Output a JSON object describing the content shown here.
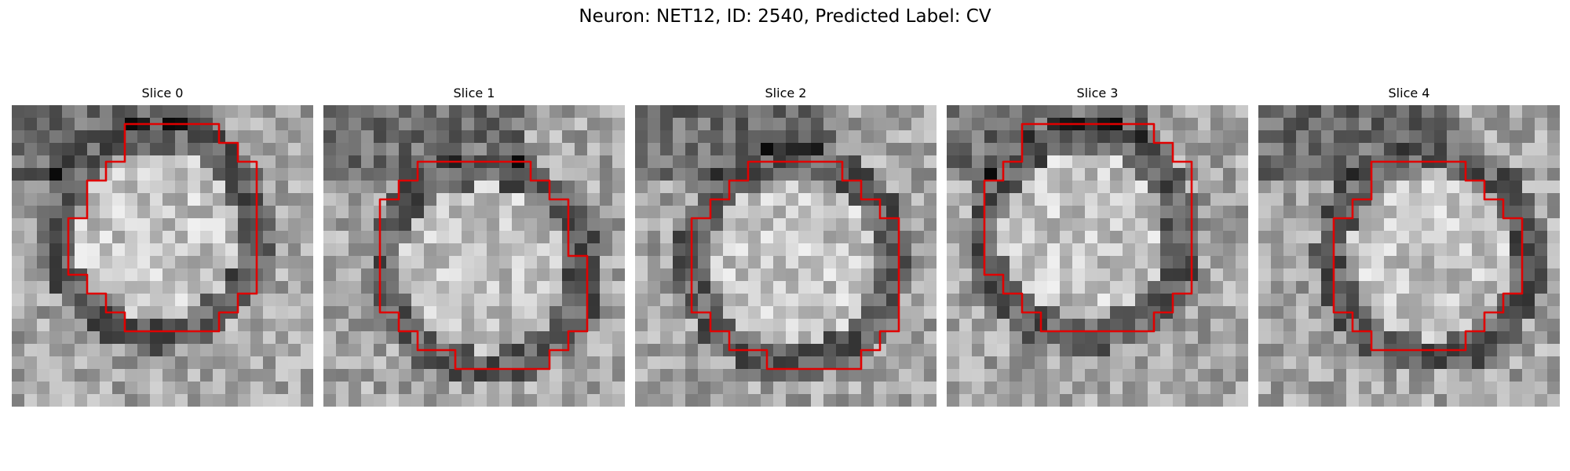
{
  "figure": {
    "title": "Neuron: NET12, ID: 2540, Predicted Label: CV"
  },
  "contour_color": "#e00000",
  "image_style": "grayscale noisy electron-micrograph patch, circular neuron body with dark ring",
  "panels": [
    {
      "title": "Slice 0",
      "seed": 11,
      "contour": [
        [
          6,
          1
        ],
        [
          11,
          1
        ],
        [
          11,
          2
        ],
        [
          12,
          2
        ],
        [
          12,
          3
        ],
        [
          13,
          3
        ],
        [
          13,
          10
        ],
        [
          12,
          10
        ],
        [
          12,
          11
        ],
        [
          11,
          11
        ],
        [
          11,
          12
        ],
        [
          6,
          12
        ],
        [
          6,
          11
        ],
        [
          5,
          11
        ],
        [
          5,
          10
        ],
        [
          4,
          10
        ],
        [
          4,
          9
        ],
        [
          3,
          9
        ],
        [
          3,
          6
        ],
        [
          4,
          6
        ],
        [
          4,
          4
        ],
        [
          5,
          4
        ],
        [
          5,
          3
        ],
        [
          6,
          3
        ]
      ]
    },
    {
      "title": "Slice 1",
      "seed": 23,
      "contour": [
        [
          5,
          3
        ],
        [
          11,
          3
        ],
        [
          11,
          4
        ],
        [
          12,
          4
        ],
        [
          12,
          5
        ],
        [
          13,
          5
        ],
        [
          13,
          8
        ],
        [
          14,
          8
        ],
        [
          14,
          12
        ],
        [
          13,
          12
        ],
        [
          13,
          13
        ],
        [
          12,
          13
        ],
        [
          12,
          14
        ],
        [
          7,
          14
        ],
        [
          7,
          13
        ],
        [
          5,
          13
        ],
        [
          5,
          12
        ],
        [
          4,
          12
        ],
        [
          4,
          11
        ],
        [
          3,
          11
        ],
        [
          3,
          5
        ],
        [
          4,
          5
        ],
        [
          4,
          4
        ],
        [
          5,
          4
        ]
      ]
    },
    {
      "title": "Slice 2",
      "seed": 37,
      "contour": [
        [
          6,
          3
        ],
        [
          11,
          3
        ],
        [
          11,
          4
        ],
        [
          12,
          4
        ],
        [
          12,
          5
        ],
        [
          13,
          5
        ],
        [
          13,
          6
        ],
        [
          14,
          6
        ],
        [
          14,
          12
        ],
        [
          13,
          12
        ],
        [
          13,
          13
        ],
        [
          12,
          13
        ],
        [
          12,
          14
        ],
        [
          7,
          14
        ],
        [
          7,
          13
        ],
        [
          5,
          13
        ],
        [
          5,
          12
        ],
        [
          4,
          12
        ],
        [
          4,
          11
        ],
        [
          3,
          11
        ],
        [
          3,
          6
        ],
        [
          4,
          6
        ],
        [
          4,
          5
        ],
        [
          5,
          5
        ],
        [
          5,
          4
        ],
        [
          6,
          4
        ]
      ]
    },
    {
      "title": "Slice 3",
      "seed": 51,
      "contour": [
        [
          4,
          1
        ],
        [
          11,
          1
        ],
        [
          11,
          2
        ],
        [
          12,
          2
        ],
        [
          12,
          3
        ],
        [
          13,
          3
        ],
        [
          13,
          10
        ],
        [
          12,
          10
        ],
        [
          12,
          11
        ],
        [
          11,
          11
        ],
        [
          11,
          12
        ],
        [
          5,
          12
        ],
        [
          5,
          11
        ],
        [
          4,
          11
        ],
        [
          4,
          10
        ],
        [
          3,
          10
        ],
        [
          3,
          9
        ],
        [
          2,
          9
        ],
        [
          2,
          4
        ],
        [
          3,
          4
        ],
        [
          3,
          3
        ],
        [
          4,
          3
        ]
      ]
    },
    {
      "title": "Slice 4",
      "seed": 67,
      "contour": [
        [
          6,
          3
        ],
        [
          11,
          3
        ],
        [
          11,
          4
        ],
        [
          12,
          4
        ],
        [
          12,
          5
        ],
        [
          13,
          5
        ],
        [
          13,
          6
        ],
        [
          14,
          6
        ],
        [
          14,
          10
        ],
        [
          13,
          10
        ],
        [
          13,
          11
        ],
        [
          12,
          11
        ],
        [
          12,
          12
        ],
        [
          11,
          12
        ],
        [
          11,
          13
        ],
        [
          6,
          13
        ],
        [
          6,
          12
        ],
        [
          5,
          12
        ],
        [
          5,
          11
        ],
        [
          4,
          11
        ],
        [
          4,
          6
        ],
        [
          5,
          6
        ],
        [
          5,
          5
        ],
        [
          6,
          5
        ],
        [
          6,
          4
        ]
      ]
    }
  ]
}
